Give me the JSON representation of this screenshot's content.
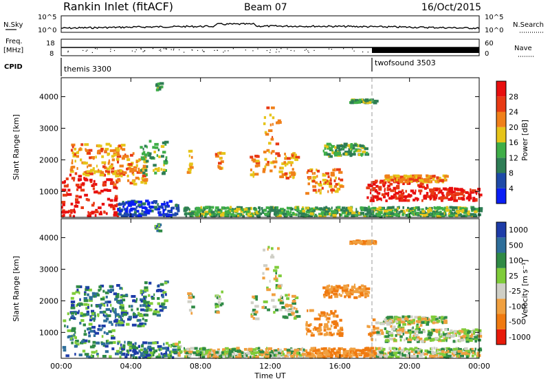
{
  "header": {
    "title": "Rankin Inlet (fitACF)",
    "beam": "Beam 07",
    "date": "16/Oct/2015"
  },
  "top_panel": {
    "left_label": "N.Sky",
    "right_label": "N.Search",
    "left_ticks": [
      "10^5",
      "10^0"
    ],
    "right_ticks": [
      "10^5",
      "10^0"
    ]
  },
  "freq_panel": {
    "left_label_1": "Freq.",
    "left_label_2": "[MHz]",
    "right_label": "Nave",
    "left_ticks": [
      "18",
      "8"
    ],
    "right_ticks": [
      "60",
      "0"
    ]
  },
  "cpid": {
    "label": "CPID",
    "segments": [
      {
        "name": "themis 3300",
        "start": "00:00"
      },
      {
        "name": "twofsound 3503",
        "start": "18:00"
      }
    ]
  },
  "chart_data": [
    {
      "type": "heatmap",
      "ylabel": "Slant Range [km]",
      "yticks": [
        1000,
        2000,
        3000,
        4000
      ],
      "ylim": [
        180,
        4600
      ],
      "xticks": [
        "00:00",
        "04:00",
        "08:00",
        "12:00",
        "16:00",
        "20:00",
        "00:00"
      ],
      "xlim_hours": [
        0,
        24
      ],
      "colorbar": {
        "label": "Power [dB]",
        "ticks": [
          4,
          8,
          12,
          16,
          20,
          24,
          28
        ],
        "colors": [
          "#0a1ef5",
          "#1e4aa8",
          "#2e7d55",
          "#3fae48",
          "#e6c41a",
          "#f0801a",
          "#e83a14",
          "#e80f0f"
        ]
      }
    },
    {
      "type": "heatmap",
      "ylabel": "Slant Range [km]",
      "yticks": [
        1000,
        2000,
        3000,
        4000
      ],
      "ylim": [
        180,
        4600
      ],
      "xticks": [
        "00:00",
        "04:00",
        "08:00",
        "12:00",
        "16:00",
        "20:00",
        "00:00"
      ],
      "xlim_hours": [
        0,
        24
      ],
      "xlabel": "Time UT",
      "colorbar": {
        "label": "Velocity [m s⁻¹]",
        "ticks": [
          1000,
          500,
          100,
          25,
          -25,
          -100,
          -500,
          -1000
        ],
        "colors": [
          "#1e3ca8",
          "#2e6e9a",
          "#2f8a45",
          "#7fcc3a",
          "#cfcfc6",
          "#f0a040",
          "#f07a10",
          "#e81a0a"
        ]
      }
    }
  ]
}
